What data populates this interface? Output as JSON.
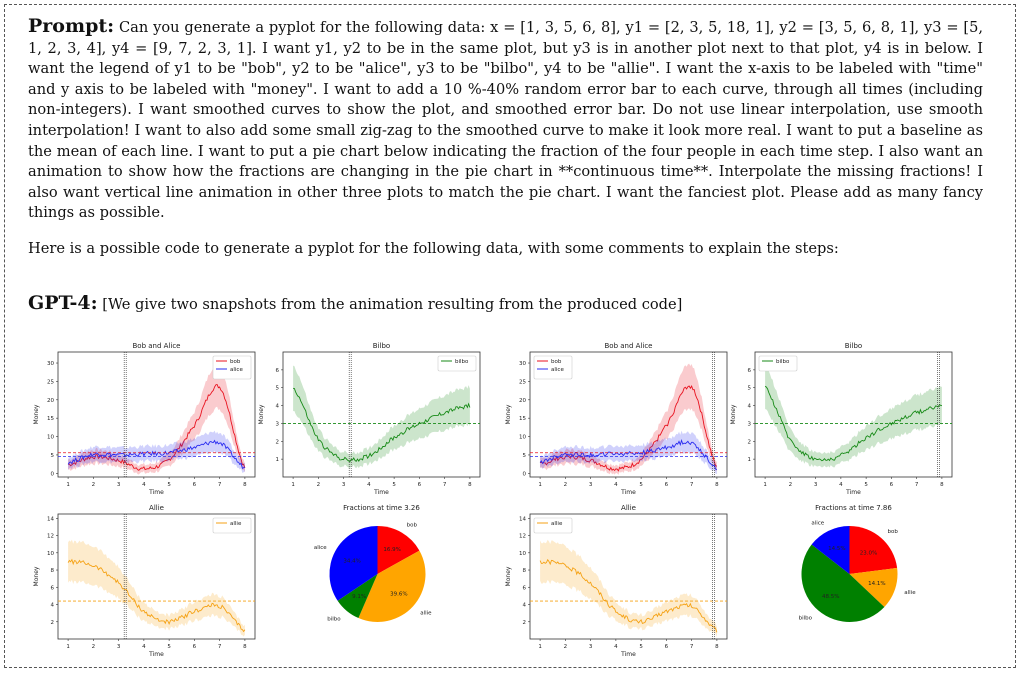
{
  "prompt": {
    "label": "Prompt:",
    "text": "Can you generate a pyplot for the following data: x = [1, 3, 5, 6, 8], y1 = [2, 3, 5, 18, 1], y2 = [3, 5, 6, 8, 1], y3 = [5, 1, 2, 3, 4], y4 = [9, 7, 2, 3, 1]. I want y1, y2 to be in the same plot, but y3 is in another plot next to that plot, y4 is in below. I want the legend of y1 to be \"bob\", y2 to be \"alice\", y3 to be \"bilbo\", y4 to be \"allie\". I want the x-axis to be labeled with \"time\" and y axis to be labeled with \"money\". I want to add a 10 %-40% random error bar to each curve, through all times (including non-integers). I want smoothed curves to show the plot, and smoothed error bar. Do not use linear interpolation, use smooth interpolation! I want to also add some small zig-zag to the smoothed curve to make it look more real. I want to put a baseline as the mean of each line. I want to put a pie chart below indicating the fraction of the four people in each time step. I also want an animation to show how the fractions are changing in the pie chart in **continuous time**. Interpolate the missing fractions! I also want vertical line animation in other three plots to match the pie chart. I want the fanciest plot. Please add as many fancy things as possible."
  },
  "intro": "Here is a possible code to generate a pyplot for the following data, with some comments to explain the steps:",
  "gpt": {
    "label": "GPT-4:",
    "text": "[We give two snapshots from the animation resulting from the produced code]"
  },
  "chart_data": [
    {
      "type": "line",
      "title": "Bob and Alice",
      "xlabel": "Time",
      "ylabel": "Money",
      "xlim": [
        0.6,
        8.4
      ],
      "ylim": [
        -1,
        33
      ],
      "yticks": [
        0,
        5,
        10,
        15,
        20,
        25,
        30
      ],
      "series": [
        {
          "name": "bob",
          "color": "#e8121f",
          "x": [
            1,
            2,
            3,
            4,
            5,
            6,
            7,
            8
          ],
          "y": [
            2.4,
            4.5,
            3.5,
            1.2,
            3.8,
            13,
            23.5,
            1.5
          ]
        },
        {
          "name": "alice",
          "color": "#2a2cf0",
          "x": [
            1,
            2,
            3,
            4,
            5,
            6,
            7,
            8
          ],
          "y": [
            3,
            5.2,
            5,
            5.3,
            5.6,
            7,
            8.3,
            1.5
          ]
        }
      ],
      "baselines": [
        5.6,
        4.6
      ],
      "vline": 3.26
    },
    {
      "type": "line",
      "title": "Bilbo",
      "xlabel": "Time",
      "ylabel": "Money",
      "xlim": [
        0.6,
        8.4
      ],
      "ylim": [
        0,
        7
      ],
      "yticks": [
        1,
        2,
        3,
        4,
        5,
        6
      ],
      "series": [
        {
          "name": "bilbo",
          "color": "#178a17",
          "x": [
            1,
            2,
            3,
            4,
            5,
            6,
            7,
            8
          ],
          "y": [
            5,
            2.1,
            1,
            1.2,
            2.2,
            3,
            3.6,
            4
          ]
        }
      ],
      "baselines": [
        3
      ],
      "vline": 3.26
    },
    {
      "type": "line",
      "title": "Allie",
      "xlabel": "Time",
      "ylabel": "Money",
      "xlim": [
        0.6,
        8.4
      ],
      "ylim": [
        0,
        14.5
      ],
      "yticks": [
        2,
        4,
        6,
        8,
        10,
        12,
        14
      ],
      "series": [
        {
          "name": "allie",
          "color": "#f5a215",
          "x": [
            1,
            2,
            3,
            4,
            5,
            6,
            7,
            8
          ],
          "y": [
            9,
            8.5,
            6.5,
            3.2,
            2,
            3.2,
            3.8,
            1
          ]
        }
      ],
      "baselines": [
        4.4
      ],
      "vline": 3.26
    },
    {
      "type": "pie",
      "title": "Fractions at time 3.26",
      "labels": [
        "bob",
        "allie",
        "bilbo",
        "alice"
      ],
      "values": [
        16.9,
        39.6,
        9.1,
        34.4
      ],
      "label_texts": [
        "16.9%",
        "39.6%",
        "9.1%",
        "34.4%"
      ],
      "colors": [
        "#ff0000",
        "#ffa500",
        "#008000",
        "#0000ff"
      ]
    },
    {
      "type": "line",
      "title": "Bob and Alice",
      "xlabel": "Time",
      "ylabel": "Money",
      "xlim": [
        0.6,
        8.4
      ],
      "ylim": [
        -1,
        33
      ],
      "yticks": [
        0,
        5,
        10,
        15,
        20,
        25,
        30
      ],
      "series": [
        {
          "name": "bob",
          "color": "#e8121f",
          "x": [
            1,
            2,
            3,
            4,
            5,
            6,
            7,
            8
          ],
          "y": [
            2.4,
            4.5,
            3.5,
            1.2,
            3.8,
            13,
            23.5,
            1.5
          ]
        },
        {
          "name": "alice",
          "color": "#2a2cf0",
          "x": [
            1,
            2,
            3,
            4,
            5,
            6,
            7,
            8
          ],
          "y": [
            3,
            5.2,
            5,
            5.3,
            5.6,
            7,
            8.3,
            1.5
          ]
        }
      ],
      "baselines": [
        5.6,
        4.6
      ],
      "vline": 7.86
    },
    {
      "type": "line",
      "title": "Bilbo",
      "xlabel": "Time",
      "ylabel": "Money",
      "xlim": [
        0.6,
        8.4
      ],
      "ylim": [
        0,
        7
      ],
      "yticks": [
        1,
        2,
        3,
        4,
        5,
        6
      ],
      "series": [
        {
          "name": "bilbo",
          "color": "#178a17",
          "x": [
            1,
            2,
            3,
            4,
            5,
            6,
            7,
            8
          ],
          "y": [
            5,
            2.1,
            1,
            1.2,
            2.2,
            3,
            3.6,
            4
          ]
        }
      ],
      "baselines": [
        3
      ],
      "vline": 7.86
    },
    {
      "type": "line",
      "title": "Allie",
      "xlabel": "Time",
      "ylabel": "Money",
      "xlim": [
        0.6,
        8.4
      ],
      "ylim": [
        0,
        14.5
      ],
      "yticks": [
        2,
        4,
        6,
        8,
        10,
        12,
        14
      ],
      "series": [
        {
          "name": "allie",
          "color": "#f5a215",
          "x": [
            1,
            2,
            3,
            4,
            5,
            6,
            7,
            8
          ],
          "y": [
            9,
            8.5,
            6.5,
            3.2,
            2,
            3.2,
            3.8,
            1
          ]
        }
      ],
      "baselines": [
        4.4
      ],
      "vline": 7.86
    },
    {
      "type": "pie",
      "title": "Fractions at time 7.86",
      "labels": [
        "bob",
        "allie",
        "bilbo",
        "alice"
      ],
      "values": [
        23,
        14.1,
        48.5,
        14.5
      ],
      "label_texts": [
        "23.0%",
        "14.1%",
        "48.5%",
        "14.5%"
      ],
      "colors": [
        "#ff0000",
        "#ffa500",
        "#008000",
        "#0000ff"
      ]
    }
  ]
}
